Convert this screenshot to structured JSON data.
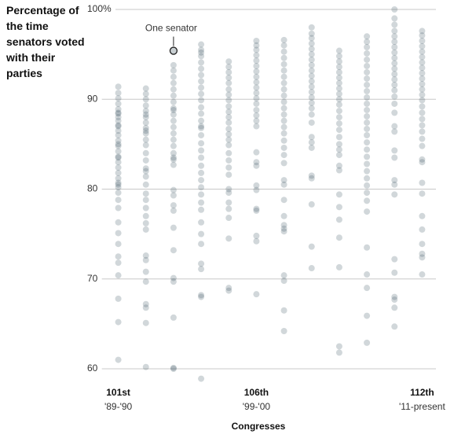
{
  "chart_data": {
    "type": "strip",
    "ylabel": "Percentage of the time senators voted with their parties",
    "xlabel": "Congresses",
    "annotation": {
      "text": "One senator",
      "value": 95.4
    },
    "categories": [
      "101st",
      null,
      null,
      null,
      null,
      "106th",
      null,
      null,
      null,
      null,
      null,
      "112th"
    ],
    "periods": [
      "'89-'90",
      null,
      null,
      null,
      null,
      "'99-'00",
      null,
      null,
      null,
      null,
      null,
      "'11-present"
    ],
    "color": "#2e4a56",
    "ylim": [
      58,
      101
    ],
    "yticks": [
      {
        "value": 100,
        "label": "100%"
      },
      90,
      80,
      70,
      60
    ],
    "grid": true,
    "series": [
      {
        "values": [
          91.4,
          90.7,
          90.1,
          89.5,
          88.9,
          88.4,
          88.0,
          87.6,
          87.1,
          86.5,
          86.0,
          85.4,
          84.8,
          84.2,
          83.6,
          83.0,
          82.4,
          81.8,
          81.2,
          80.7,
          80.2,
          79.6,
          78.8,
          77.9,
          76.3,
          75.1,
          73.9,
          72.5,
          71.8,
          70.4,
          67.8,
          65.2,
          61.0,
          88.5,
          87.0,
          85.0,
          83.5,
          80.5
        ]
      },
      {
        "values": [
          91.2,
          90.6,
          90.0,
          89.3,
          88.7,
          88.0,
          87.4,
          86.8,
          86.2,
          85.5,
          84.9,
          84.0,
          83.2,
          82.3,
          81.4,
          80.5,
          79.5,
          78.8,
          77.9,
          77.0,
          76.2,
          75.5,
          72.6,
          72.1,
          70.8,
          69.7,
          67.2,
          66.8,
          65.1,
          60.2,
          86.5,
          88.3,
          82.0
        ]
      },
      {
        "values": [
          95.4,
          93.8,
          93.2,
          92.5,
          91.8,
          91.1,
          90.4,
          89.7,
          89.0,
          88.3,
          87.6,
          86.9,
          86.2,
          85.5,
          84.8,
          84.0,
          83.3,
          82.7,
          79.9,
          79.3,
          78.2,
          77.6,
          75.7,
          73.2,
          70.1,
          69.7,
          65.7,
          60.1,
          60.0,
          88.8,
          83.5
        ]
      },
      {
        "values": [
          96.1,
          95.5,
          94.8,
          94.1,
          93.4,
          92.7,
          92.0,
          91.3,
          90.6,
          89.9,
          89.1,
          88.4,
          87.6,
          86.8,
          86.0,
          85.1,
          84.3,
          83.5,
          82.6,
          81.8,
          81.0,
          80.2,
          79.4,
          78.5,
          77.7,
          76.3,
          75.0,
          73.9,
          71.7,
          71.1,
          68.2,
          68.0,
          58.9,
          95.2,
          87.0
        ]
      },
      {
        "values": [
          94.2,
          93.6,
          93.0,
          92.4,
          91.8,
          91.1,
          90.5,
          89.9,
          89.2,
          88.6,
          88.0,
          87.4,
          86.7,
          86.1,
          85.5,
          84.9,
          84.0,
          83.2,
          82.4,
          81.6,
          80.0,
          79.6,
          78.5,
          77.8,
          76.8,
          74.5,
          69.0,
          68.7
        ]
      },
      {
        "values": [
          96.5,
          96.0,
          95.5,
          94.9,
          94.3,
          93.7,
          93.1,
          92.5,
          91.9,
          91.3,
          90.7,
          90.1,
          89.5,
          88.8,
          88.2,
          87.6,
          87.0,
          84.1,
          83.0,
          82.6,
          80.4,
          79.9,
          77.8,
          77.6,
          74.8,
          74.2,
          68.3
        ]
      },
      {
        "values": [
          96.6,
          96.0,
          95.3,
          94.6,
          93.9,
          93.2,
          92.5,
          91.8,
          91.1,
          90.4,
          89.7,
          89.0,
          88.3,
          87.6,
          86.9,
          86.2,
          85.4,
          84.6,
          83.8,
          82.9,
          81.0,
          80.5,
          78.8,
          77.0,
          76.0,
          75.6,
          75.3,
          70.4,
          69.8,
          66.5,
          64.2
        ]
      },
      {
        "values": [
          98.0,
          97.3,
          96.8,
          96.2,
          95.6,
          95.0,
          94.4,
          93.8,
          93.2,
          92.6,
          92.0,
          91.4,
          90.8,
          90.2,
          89.6,
          89.0,
          88.3,
          87.4,
          85.8,
          85.2,
          84.6,
          81.5,
          81.2,
          78.3,
          73.6,
          71.2
        ]
      },
      {
        "values": [
          95.4,
          94.8,
          94.2,
          93.6,
          93.0,
          92.4,
          91.8,
          91.2,
          90.6,
          90.0,
          89.4,
          88.7,
          88.0,
          87.3,
          86.6,
          85.8,
          85.0,
          84.4,
          83.8,
          82.6,
          82.1,
          79.4,
          78.0,
          76.6,
          74.6,
          71.3,
          62.5,
          61.8
        ]
      },
      {
        "values": [
          97.0,
          96.4,
          95.8,
          95.1,
          94.4,
          93.7,
          93.0,
          92.3,
          91.6,
          90.9,
          90.2,
          89.5,
          88.8,
          88.1,
          87.4,
          86.7,
          86.0,
          85.2,
          84.4,
          83.6,
          82.8,
          82.0,
          81.2,
          80.4,
          79.6,
          78.7,
          77.5,
          73.5,
          70.5,
          69.0,
          65.9,
          62.9
        ]
      },
      {
        "values": [
          100.0,
          99.0,
          98.3,
          97.6,
          97.0,
          96.4,
          95.8,
          95.2,
          94.6,
          94.0,
          93.4,
          92.8,
          92.2,
          91.6,
          91.0,
          90.3,
          89.5,
          88.5,
          87.0,
          86.4,
          84.3,
          83.5,
          81.0,
          80.5,
          79.4,
          72.2,
          70.7,
          68.0,
          67.7,
          66.8,
          64.7
        ]
      },
      {
        "values": [
          97.6,
          97.1,
          96.5,
          95.9,
          95.3,
          94.7,
          94.1,
          93.5,
          92.9,
          92.3,
          91.7,
          91.1,
          90.5,
          89.9,
          89.2,
          88.5,
          87.8,
          87.1,
          86.4,
          85.6,
          84.8,
          83.3,
          83.0,
          80.7,
          79.5,
          77.0,
          75.5,
          73.9,
          72.8,
          72.4,
          70.5
        ]
      }
    ]
  }
}
